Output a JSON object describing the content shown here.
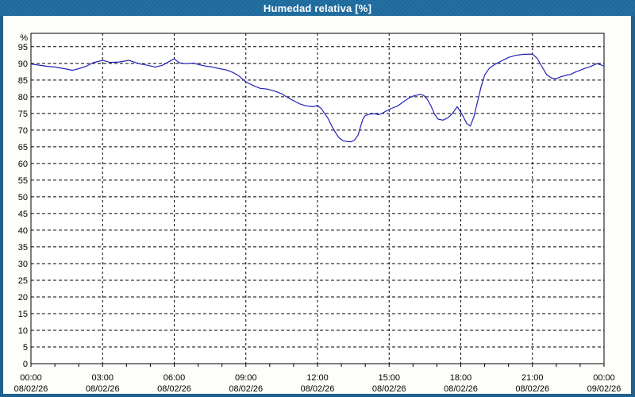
{
  "window": {
    "title": "Humedad relativa [%]"
  },
  "colors": {
    "titlebar_bg": "#1d6b9e",
    "window_border": "#20608f",
    "content_bg": "#fdfefa",
    "plot_bg": "#ffffff",
    "axis": "#000000",
    "grid": "#000000",
    "label_text": "#000000",
    "title_text": "#ffffff",
    "line": "#2222b8"
  },
  "chart_data": {
    "type": "line",
    "title": "Humedad relativa [%]",
    "y_unit_label": "%",
    "ylim": [
      0,
      99
    ],
    "y_tick_step": 5,
    "y_ticks": [
      0,
      5,
      10,
      15,
      20,
      25,
      30,
      35,
      40,
      45,
      50,
      55,
      60,
      65,
      70,
      75,
      80,
      85,
      90,
      95
    ],
    "grid": "dashed",
    "legend": "none",
    "x_hours_range": [
      0,
      24
    ],
    "x_major_tick_every_hours": 3,
    "x_minor_tick_every_hours": 1,
    "x_major_labels": [
      {
        "time": "00:00",
        "date": "08/02/26"
      },
      {
        "time": "03:00",
        "date": "08/02/26"
      },
      {
        "time": "06:00",
        "date": "08/02/26"
      },
      {
        "time": "09:00",
        "date": "08/02/26"
      },
      {
        "time": "12:00",
        "date": "08/02/26"
      },
      {
        "time": "15:00",
        "date": "08/02/26"
      },
      {
        "time": "18:00",
        "date": "08/02/26"
      },
      {
        "time": "21:00",
        "date": "08/02/26"
      },
      {
        "time": "00:00",
        "date": "09/02/26"
      }
    ],
    "series": [
      {
        "name": "Humedad relativa",
        "unit": "%",
        "color": "#2222b8",
        "points": [
          [
            0.0,
            89.8
          ],
          [
            0.3,
            89.5
          ],
          [
            0.7,
            89.1
          ],
          [
            1.0,
            88.9
          ],
          [
            1.4,
            88.4
          ],
          [
            1.75,
            87.9
          ],
          [
            2.0,
            88.4
          ],
          [
            2.3,
            89.1
          ],
          [
            2.6,
            90.2
          ],
          [
            3.0,
            90.9
          ],
          [
            3.3,
            90.3
          ],
          [
            3.7,
            90.4
          ],
          [
            4.1,
            90.9
          ],
          [
            4.35,
            90.3
          ],
          [
            4.6,
            89.8
          ],
          [
            4.9,
            89.4
          ],
          [
            5.2,
            88.9
          ],
          [
            5.5,
            89.4
          ],
          [
            5.8,
            90.6
          ],
          [
            6.0,
            91.4
          ],
          [
            6.2,
            90.2
          ],
          [
            6.5,
            89.9
          ],
          [
            6.8,
            90.1
          ],
          [
            7.05,
            89.6
          ],
          [
            7.3,
            89.2
          ],
          [
            7.6,
            88.9
          ],
          [
            7.9,
            88.4
          ],
          [
            8.2,
            88.0
          ],
          [
            8.45,
            87.3
          ],
          [
            8.7,
            86.3
          ],
          [
            9.0,
            84.4
          ],
          [
            9.3,
            83.4
          ],
          [
            9.6,
            82.5
          ],
          [
            9.9,
            82.3
          ],
          [
            10.2,
            81.7
          ],
          [
            10.5,
            80.9
          ],
          [
            10.75,
            79.8
          ],
          [
            11.0,
            78.8
          ],
          [
            11.25,
            77.9
          ],
          [
            11.5,
            77.3
          ],
          [
            11.8,
            77.0
          ],
          [
            12.0,
            77.4
          ],
          [
            12.15,
            76.5
          ],
          [
            12.3,
            75.0
          ],
          [
            12.45,
            73.4
          ],
          [
            12.6,
            71.2
          ],
          [
            12.75,
            69.3
          ],
          [
            12.9,
            67.7
          ],
          [
            13.05,
            66.9
          ],
          [
            13.2,
            66.6
          ],
          [
            13.4,
            66.5
          ],
          [
            13.55,
            67.0
          ],
          [
            13.7,
            68.5
          ],
          [
            13.8,
            71.0
          ],
          [
            13.9,
            73.3
          ],
          [
            14.0,
            74.4
          ],
          [
            14.2,
            74.8
          ],
          [
            14.4,
            74.9
          ],
          [
            14.55,
            74.6
          ],
          [
            14.7,
            75.0
          ],
          [
            14.9,
            75.8
          ],
          [
            15.1,
            76.5
          ],
          [
            15.35,
            77.2
          ],
          [
            15.6,
            78.5
          ],
          [
            15.85,
            79.7
          ],
          [
            16.05,
            80.3
          ],
          [
            16.3,
            80.7
          ],
          [
            16.45,
            80.4
          ],
          [
            16.6,
            79.2
          ],
          [
            16.75,
            77.3
          ],
          [
            16.9,
            74.8
          ],
          [
            17.05,
            73.3
          ],
          [
            17.25,
            73.0
          ],
          [
            17.45,
            73.6
          ],
          [
            17.65,
            75.0
          ],
          [
            17.85,
            77.0
          ],
          [
            18.05,
            74.8
          ],
          [
            18.25,
            72.0
          ],
          [
            18.4,
            71.2
          ],
          [
            18.55,
            74.0
          ],
          [
            18.7,
            78.5
          ],
          [
            18.85,
            83.0
          ],
          [
            19.0,
            86.5
          ],
          [
            19.2,
            88.6
          ],
          [
            19.45,
            89.8
          ],
          [
            19.7,
            90.7
          ],
          [
            20.0,
            91.8
          ],
          [
            20.3,
            92.4
          ],
          [
            20.6,
            92.7
          ],
          [
            21.0,
            92.8
          ],
          [
            21.2,
            91.5
          ],
          [
            21.4,
            89.0
          ],
          [
            21.6,
            86.6
          ],
          [
            21.8,
            85.6
          ],
          [
            22.0,
            85.4
          ],
          [
            22.2,
            86.0
          ],
          [
            22.45,
            86.5
          ],
          [
            22.6,
            86.7
          ],
          [
            22.8,
            87.4
          ],
          [
            23.0,
            87.9
          ],
          [
            23.2,
            88.5
          ],
          [
            23.45,
            89.1
          ],
          [
            23.7,
            89.9
          ],
          [
            23.85,
            89.6
          ],
          [
            24.0,
            89.2
          ]
        ]
      }
    ]
  }
}
